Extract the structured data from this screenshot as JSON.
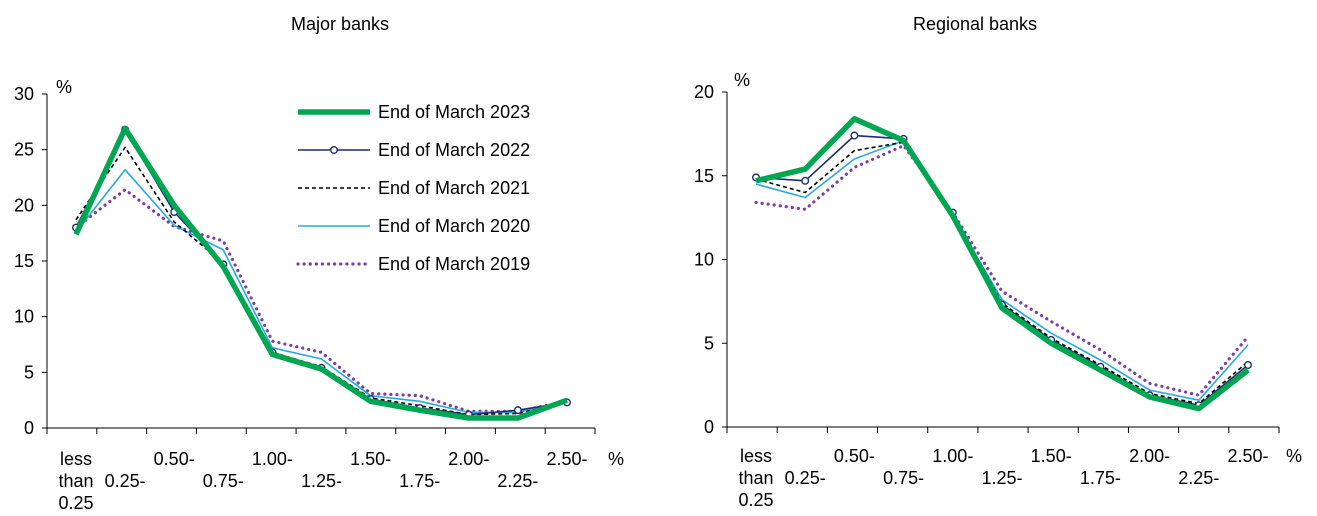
{
  "chart_data": [
    {
      "type": "line",
      "title": "Major banks",
      "ylabel": "%",
      "xunit": "%",
      "ylim": [
        0,
        30
      ],
      "yticks": [
        0,
        5,
        10,
        15,
        20,
        25,
        30
      ],
      "x_tick_labels": [
        {
          "lines": [
            "less",
            "than",
            "0.25"
          ]
        },
        {
          "lines": [
            "",
            "0.25-"
          ]
        },
        {
          "lines": [
            "0.50-"
          ]
        },
        {
          "lines": [
            "",
            "0.75-"
          ]
        },
        {
          "lines": [
            "1.00-"
          ]
        },
        {
          "lines": [
            "",
            "1.25-"
          ]
        },
        {
          "lines": [
            "1.50-"
          ]
        },
        {
          "lines": [
            "",
            "1.75-"
          ]
        },
        {
          "lines": [
            "2.00-"
          ]
        },
        {
          "lines": [
            "",
            "2.25-"
          ]
        },
        {
          "lines": [
            "2.50-"
          ]
        }
      ],
      "legend_placement": "top-right",
      "series": [
        {
          "name": "End of March 2019",
          "style": "dotted",
          "color": "#7b3fa8",
          "values": [
            18.0,
            21.4,
            18.1,
            16.8,
            7.8,
            6.8,
            3.1,
            2.9,
            1.5,
            1.5,
            2.4
          ]
        },
        {
          "name": "End of March 2020",
          "style": "thin",
          "color": "#29a9e0",
          "values": [
            17.6,
            23.2,
            18.2,
            16.0,
            7.2,
            6.2,
            2.9,
            2.4,
            1.4,
            1.4,
            2.4
          ]
        },
        {
          "name": "End of March 2021",
          "style": "dashed",
          "color": "#000000",
          "values": [
            18.7,
            25.2,
            18.5,
            14.8,
            6.8,
            5.5,
            2.7,
            2.0,
            1.2,
            1.3,
            2.3
          ]
        },
        {
          "name": "End of March 2022",
          "style": "markers",
          "color": "#1f2d6b",
          "values": [
            18.0,
            26.8,
            19.4,
            14.7,
            6.8,
            5.4,
            2.6,
            1.8,
            1.2,
            1.6,
            2.3
          ]
        },
        {
          "name": "End of March 2023",
          "style": "thick",
          "color": "#00a651",
          "values": [
            17.4,
            26.9,
            20.0,
            14.5,
            6.6,
            5.3,
            2.4,
            1.6,
            0.9,
            0.9,
            2.5
          ]
        }
      ]
    },
    {
      "type": "line",
      "title": "Regional banks",
      "ylabel": "%",
      "xunit": "%",
      "ylim": [
        0,
        20
      ],
      "yticks": [
        0,
        5,
        10,
        15,
        20
      ],
      "x_tick_labels": [
        {
          "lines": [
            "less",
            "than",
            "0.25"
          ]
        },
        {
          "lines": [
            "",
            "0.25-"
          ]
        },
        {
          "lines": [
            "0.50-"
          ]
        },
        {
          "lines": [
            "",
            "0.75-"
          ]
        },
        {
          "lines": [
            "1.00-"
          ]
        },
        {
          "lines": [
            "",
            "1.25-"
          ]
        },
        {
          "lines": [
            "1.50-"
          ]
        },
        {
          "lines": [
            "",
            "1.75-"
          ]
        },
        {
          "lines": [
            "2.00-"
          ]
        },
        {
          "lines": [
            "",
            "2.25-"
          ]
        },
        {
          "lines": [
            "2.50-"
          ]
        }
      ],
      "series": [
        {
          "name": "End of March 2019",
          "style": "dotted",
          "color": "#7b3fa8",
          "values": [
            13.4,
            13.0,
            15.5,
            16.8,
            12.8,
            8.1,
            6.3,
            4.6,
            2.6,
            1.9,
            5.4
          ]
        },
        {
          "name": "End of March 2020",
          "style": "thin",
          "color": "#29a9e0",
          "values": [
            14.5,
            13.7,
            16.0,
            17.1,
            12.6,
            7.6,
            5.6,
            4.0,
            2.2,
            1.6,
            4.9
          ]
        },
        {
          "name": "End of March 2021",
          "style": "dashed",
          "color": "#000000",
          "values": [
            14.8,
            14.0,
            16.5,
            17.0,
            12.8,
            7.4,
            5.3,
            3.7,
            2.0,
            1.4,
            3.9
          ]
        },
        {
          "name": "End of March 2022",
          "style": "markers",
          "color": "#1f2d6b",
          "values": [
            14.9,
            14.7,
            17.4,
            17.2,
            12.8,
            7.3,
            5.2,
            3.6,
            1.9,
            1.3,
            3.7
          ]
        },
        {
          "name": "End of March 2023",
          "style": "thick",
          "color": "#00a651",
          "values": [
            14.7,
            15.4,
            18.4,
            17.1,
            12.6,
            7.1,
            5.0,
            3.4,
            1.8,
            1.1,
            3.4
          ]
        }
      ]
    }
  ]
}
